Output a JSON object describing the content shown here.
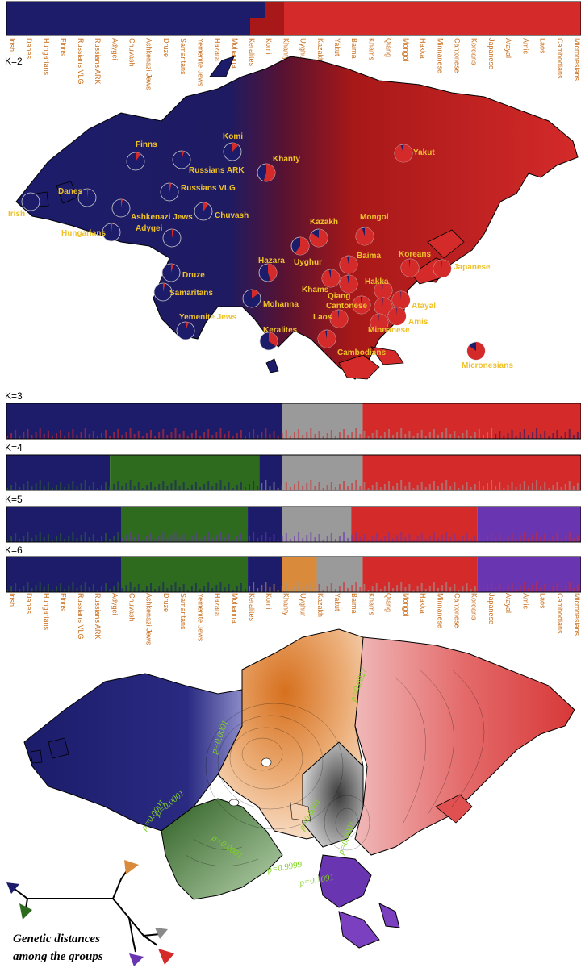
{
  "k_labels": {
    "k2": "K=2",
    "k3": "K=3",
    "k4": "K=4",
    "k5": "K=5",
    "k6": "K=6"
  },
  "populations": [
    "Irish",
    "Danes",
    "Hungarians",
    "Finns",
    "Russians VLG",
    "Russians ARK",
    "Adygei",
    "Chuvash",
    "Ashkenazi Jews",
    "Druze",
    "Samaritans",
    "Yemenite Jews",
    "Hazara",
    "Mohanna",
    "Keralites",
    "Komi",
    "Khanty",
    "Uyghur",
    "Kazakh",
    "Yakut",
    "Baima",
    "Khams",
    "Qiang",
    "Mongol",
    "Hakka",
    "Minnanese",
    "Cantonese",
    "Koreans",
    "Japanese",
    "Atayal",
    "Amis",
    "Laos",
    "Cambodians",
    "Micronesians"
  ],
  "map_labels": {
    "finns": "Finns",
    "komi": "Komi",
    "russians_ark": "Russians ARK",
    "khanty": "Khanty",
    "yakut": "Yakut",
    "danes": "Danes",
    "irish": "Irish",
    "russians_vlg": "Russians VLG",
    "ashkenazi": "Ashkenazi Jews",
    "chuvash": "Chuvash",
    "adygei": "Adygei",
    "hungarians": "Hungarians",
    "kazakh": "Kazakh",
    "mongol": "Mongol",
    "hazara": "Hazara",
    "uyghur": "Uyghur",
    "baima": "Baima",
    "koreans": "Koreans",
    "japanese": "Japanese",
    "druze": "Druze",
    "khams": "Khams",
    "hakka": "Hakka",
    "samaritans": "Samaritans",
    "qiang": "Qiang",
    "mohanna": "Mohanna",
    "cantonese": "Cantonese",
    "atayal": "Atayal",
    "laos": "Laos",
    "amis": "Amis",
    "yemenite": "Yemenite Jews",
    "minnanese": "Minnanese",
    "keralites": "Keralites",
    "cambodians": "Cambodians",
    "micronesians": "Micronesians"
  },
  "pvalues": [
    "p=0.0001",
    "p=0.0001",
    "p=0.0001",
    "p=0.0027",
    "p=0.0001",
    "p=0.0001",
    "p=0.9999",
    "p=0.1091",
    "p=0.0001"
  ],
  "caption": {
    "line1": "Genetic distances",
    "line2": "among the groups"
  },
  "colors": {
    "navy": "#1c1c6b",
    "red": "#d42a2a",
    "gray": "#9a9a9a",
    "green": "#2f6b1f",
    "purple": "#6a35b0",
    "orange": "#d98a3a"
  }
}
